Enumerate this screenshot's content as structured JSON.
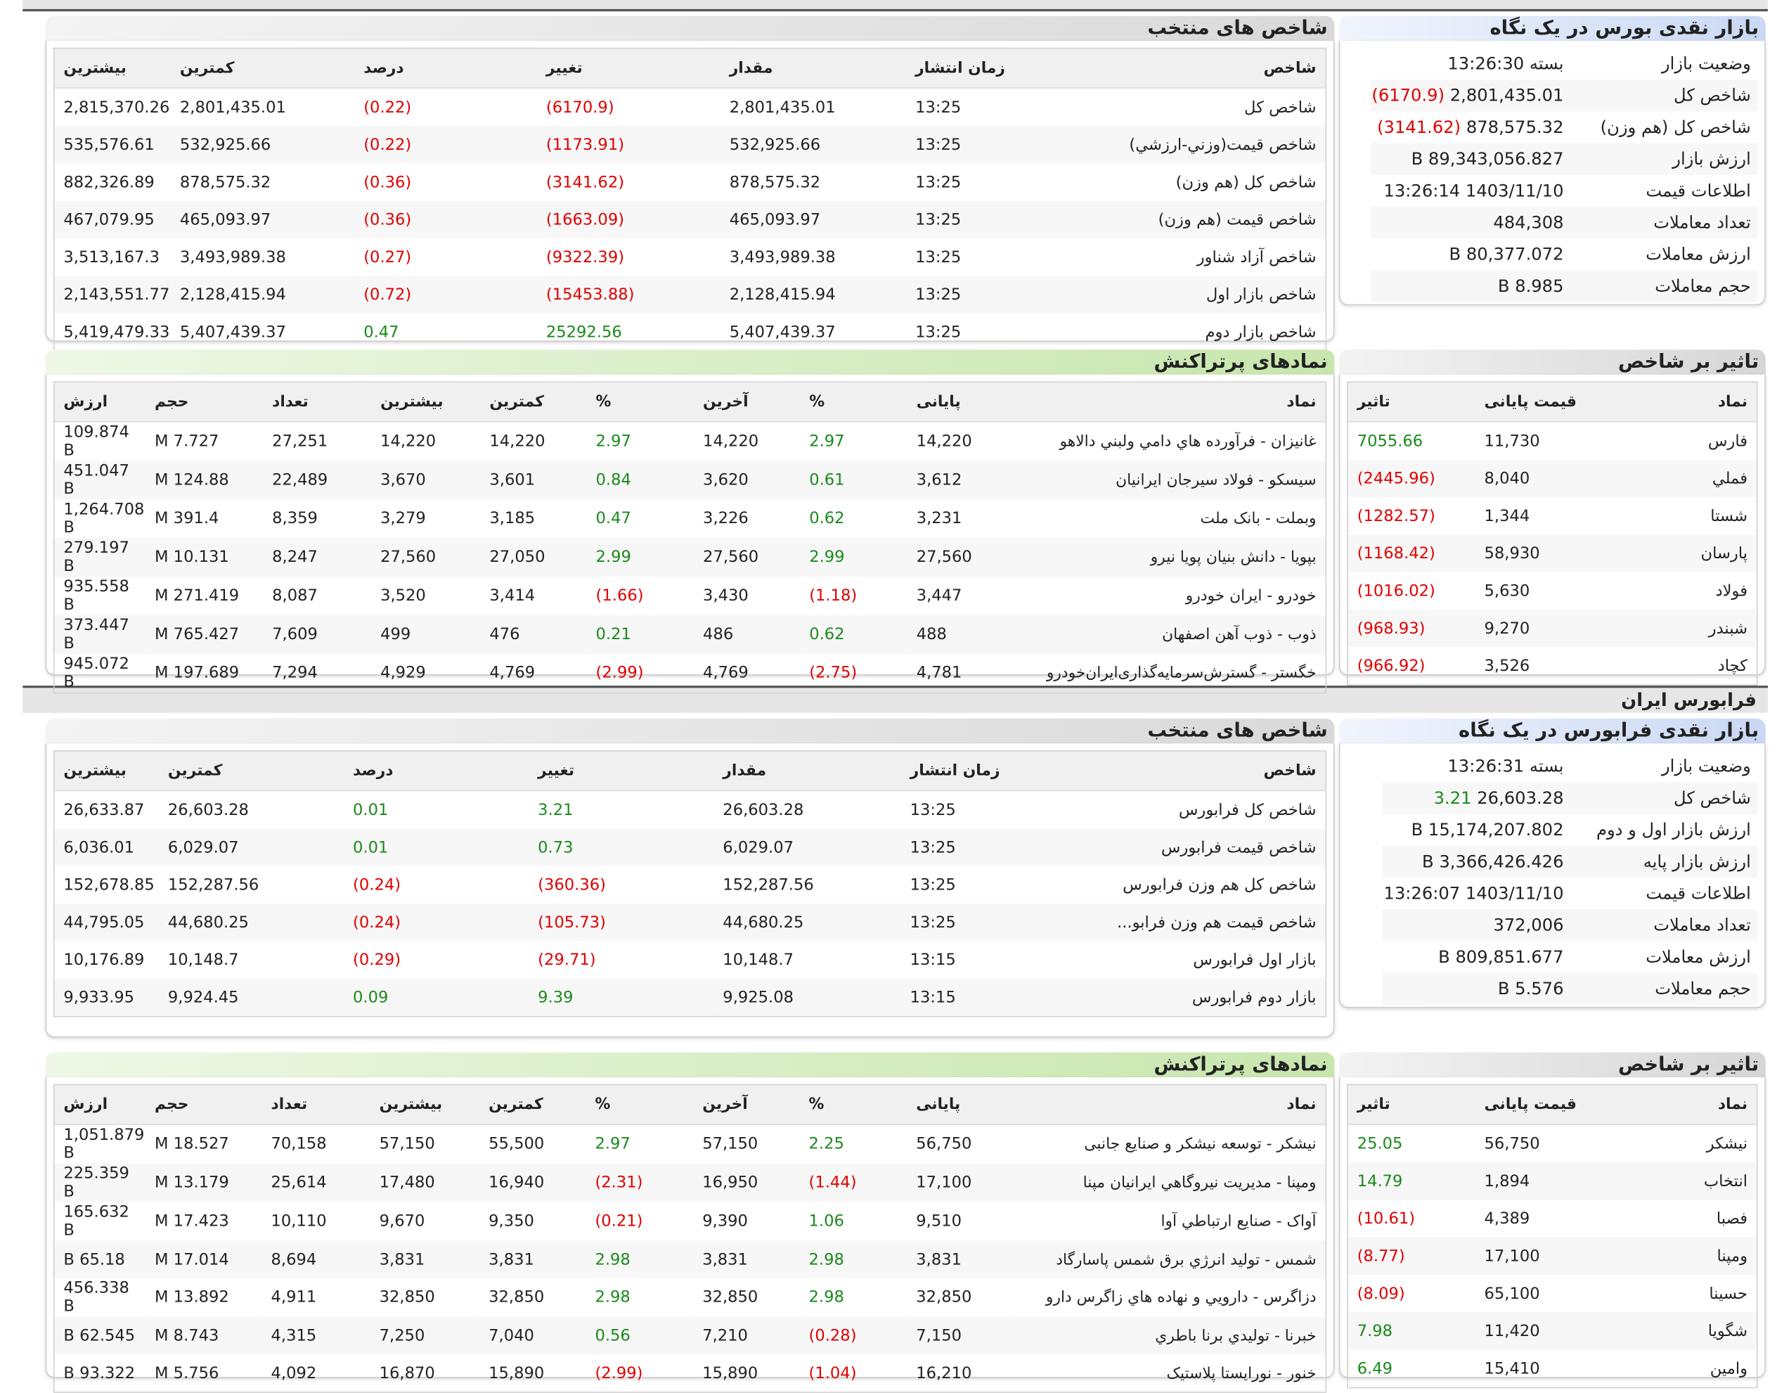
{
  "tehran": {
    "snapshot": {
      "title": "بازار نقدی بورس در یک نگاه",
      "rows": [
        {
          "k": "وضعیت بازار",
          "v": "بسته 13:26:30",
          "extra": "",
          "cls": ""
        },
        {
          "k": "شاخص کل",
          "v": "2,801,435.01",
          "extra": "(6170.9)",
          "cls": "neg"
        },
        {
          "k": "شاخص کل (هم وزن)",
          "v": "878,575.32",
          "extra": "(3141.62)",
          "cls": "neg"
        },
        {
          "k": "ارزش بازار",
          "v": "89,343,056.827 B",
          "extra": "",
          "cls": ""
        },
        {
          "k": "اطلاعات قیمت",
          "v": "1403/11/10 13:26:14",
          "extra": "",
          "cls": ""
        },
        {
          "k": "تعداد معاملات",
          "v": "484,308",
          "extra": "",
          "cls": ""
        },
        {
          "k": "ارزش معاملات",
          "v": "80,377.072 B",
          "extra": "",
          "cls": ""
        },
        {
          "k": "حجم معاملات",
          "v": "8.985 B",
          "extra": "",
          "cls": ""
        }
      ]
    },
    "indices": {
      "title": "شاخص های منتخب",
      "headers": [
        "شاخص",
        "زمان انتشار",
        "مقدار",
        "تغییر",
        "درصد",
        "کمترین",
        "بیشترین"
      ],
      "rows": [
        [
          "شاخص کل",
          "13:25",
          "2,801,435.01",
          "(6170.9)",
          "(0.22)",
          "2,801,435.01",
          "2,815,370.26"
        ],
        [
          "شاخص قیمت(وزني-ارزشي)",
          "13:25",
          "532,925.66",
          "(1173.91)",
          "(0.22)",
          "532,925.66",
          "535,576.61"
        ],
        [
          "شاخص کل (هم وزن)",
          "13:25",
          "878,575.32",
          "(3141.62)",
          "(0.36)",
          "878,575.32",
          "882,326.89"
        ],
        [
          "شاخص قیمت (هم وزن)",
          "13:25",
          "465,093.97",
          "(1663.09)",
          "(0.36)",
          "465,093.97",
          "467,079.95"
        ],
        [
          "شاخص آزاد شناور",
          "13:25",
          "3,493,989.38",
          "(9322.39)",
          "(0.27)",
          "3,493,989.38",
          "3,513,167.3"
        ],
        [
          "شاخص بازار اول",
          "13:25",
          "2,128,415.94",
          "(15453.88)",
          "(0.72)",
          "2,128,415.94",
          "2,143,551.77"
        ],
        [
          "شاخص بازار دوم",
          "13:25",
          "5,407,439.37",
          "25292.56",
          "0.47",
          "5,407,439.37",
          "5,419,479.33"
        ]
      ]
    },
    "impact": {
      "title": "تاثیر بر شاخص",
      "headers": [
        "نماد",
        "قیمت پایانی",
        "تاثیر"
      ],
      "rows": [
        [
          "فارس",
          "11,730",
          "7055.66"
        ],
        [
          "فملي",
          "8,040",
          "(2445.96)"
        ],
        [
          "شستا",
          "1,344",
          "(1282.57)"
        ],
        [
          "پارسان",
          "58,930",
          "(1168.42)"
        ],
        [
          "فولاد",
          "5,630",
          "(1016.02)"
        ],
        [
          "شبندر",
          "9,270",
          "(968.93)"
        ],
        [
          "کچاد",
          "3,526",
          "(966.92)"
        ]
      ]
    },
    "active": {
      "title": "نمادهای پرتراکنش",
      "headers": [
        "نماد",
        "پایانی",
        "%",
        "آخرین",
        "%",
        "کمترین",
        "بیشترین",
        "تعداد",
        "حجم",
        "ارزش"
      ],
      "rows": [
        [
          "غانیزان - فرآورده هاي دامي ولبني دالاهو",
          "14,220",
          "2.97",
          "14,220",
          "2.97",
          "14,220",
          "14,220",
          "27,251",
          "7.727 M",
          "109.874 B"
        ],
        [
          "سیسکو - فولاد سیرجان ایرانیان",
          "3,612",
          "0.61",
          "3,620",
          "0.84",
          "3,601",
          "3,670",
          "22,489",
          "124.88 M",
          "451.047 B"
        ],
        [
          "وبملت - بانک ملت",
          "3,231",
          "0.62",
          "3,226",
          "0.47",
          "3,185",
          "3,279",
          "8,359",
          "391.4 M",
          "1,264.708 B"
        ],
        [
          "بپویا - دانش بنیان پویا نیرو",
          "27,560",
          "2.99",
          "27,560",
          "2.99",
          "27,050",
          "27,560",
          "8,247",
          "10.131 M",
          "279.197 B"
        ],
        [
          "خودرو - ایران خودرو",
          "3,447",
          "(1.18)",
          "3,430",
          "(1.66)",
          "3,414",
          "3,520",
          "8,087",
          "271.419 M",
          "935.558 B"
        ],
        [
          "ذوب - ذوب آهن اصفهان",
          "488",
          "0.62",
          "486",
          "0.21",
          "476",
          "499",
          "7,609",
          "765.427 M",
          "373.447 B"
        ],
        [
          "خگستر - گسترش‌سرمایه‌گذاری‌ایران‌خودرو",
          "4,781",
          "(2.75)",
          "4,769",
          "(2.99)",
          "4,769",
          "4,929",
          "7,294",
          "197.689 M",
          "945.072 B"
        ]
      ]
    }
  },
  "farabourse": {
    "section_title": "فرابورس ایران",
    "snapshot": {
      "title": "بازار نقدی فرابورس در یک نگاه",
      "rows": [
        {
          "k": "وضعیت بازار",
          "v": "بسته 13:26:31",
          "extra": "",
          "cls": ""
        },
        {
          "k": "شاخص کل",
          "v": "26,603.28",
          "extra": "3.21",
          "cls": "pos"
        },
        {
          "k": "ارزش بازار اول و دوم",
          "v": "15,174,207.802 B",
          "extra": "",
          "cls": ""
        },
        {
          "k": "ارزش بازار پایه",
          "v": "3,366,426.426 B",
          "extra": "",
          "cls": ""
        },
        {
          "k": "اطلاعات قیمت",
          "v": "1403/11/10 13:26:07",
          "extra": "",
          "cls": ""
        },
        {
          "k": "تعداد معاملات",
          "v": "372,006",
          "extra": "",
          "cls": ""
        },
        {
          "k": "ارزش معاملات",
          "v": "809,851.677 B",
          "extra": "",
          "cls": ""
        },
        {
          "k": "حجم معاملات",
          "v": "5.576 B",
          "extra": "",
          "cls": ""
        }
      ]
    },
    "indices": {
      "title": "شاخص های منتخب",
      "headers": [
        "شاخص",
        "زمان انتشار",
        "مقدار",
        "تغییر",
        "درصد",
        "کمترین",
        "بیشترین"
      ],
      "rows": [
        [
          "شاخص کل فرابورس",
          "13:25",
          "26,603.28",
          "3.21",
          "0.01",
          "26,603.28",
          "26,633.87"
        ],
        [
          "شاخص قیمت فرابورس",
          "13:25",
          "6,029.07",
          "0.73",
          "0.01",
          "6,029.07",
          "6,036.01"
        ],
        [
          "شاخص کل هم وزن فرابورس",
          "13:25",
          "152,287.56",
          "(360.36)",
          "(0.24)",
          "152,287.56",
          "152,678.85"
        ],
        [
          "شاخص قیمت هم وزن فرابو...",
          "13:25",
          "44,680.25",
          "(105.73)",
          "(0.24)",
          "44,680.25",
          "44,795.05"
        ],
        [
          "بازار اول فرابورس",
          "13:15",
          "10,148.7",
          "(29.71)",
          "(0.29)",
          "10,148.7",
          "10,176.89"
        ],
        [
          "بازار دوم فرابورس",
          "13:15",
          "9,925.08",
          "9.39",
          "0.09",
          "9,924.45",
          "9,933.95"
        ]
      ]
    },
    "impact": {
      "title": "تاثیر بر شاخص",
      "headers": [
        "نماد",
        "قیمت پایانی",
        "تاثیر"
      ],
      "rows": [
        [
          "نیشکر",
          "56,750",
          "25.05"
        ],
        [
          "انتخاب",
          "1,894",
          "14.79"
        ],
        [
          "فصبا",
          "4,389",
          "(10.61)"
        ],
        [
          "ومپنا",
          "17,100",
          "(8.77)"
        ],
        [
          "حسینا",
          "65,100",
          "(8.09)"
        ],
        [
          "شگویا",
          "11,420",
          "7.98"
        ],
        [
          "وامین",
          "15,410",
          "6.49"
        ]
      ]
    },
    "active": {
      "title": "نمادهای پرتراکنش",
      "headers": [
        "نماد",
        "پایانی",
        "%",
        "آخرین",
        "%",
        "کمترین",
        "بیشترین",
        "تعداد",
        "حجم",
        "ارزش"
      ],
      "rows": [
        [
          "نیشکر - توسعه نیشکر و صنایع جانبی",
          "56,750",
          "2.25",
          "57,150",
          "2.97",
          "55,500",
          "57,150",
          "70,158",
          "18.527 M",
          "1,051.879 B"
        ],
        [
          "ومپنا - مدیریت نیروگاهي ایرانیان مپنا",
          "17,100",
          "(1.44)",
          "16,950",
          "(2.31)",
          "16,940",
          "17,480",
          "25,614",
          "13.179 M",
          "225.359 B"
        ],
        [
          "آواک - صنایع ارتباطي آوا",
          "9,510",
          "1.06",
          "9,390",
          "(0.21)",
          "9,350",
          "9,670",
          "10,110",
          "17.423 M",
          "165.632 B"
        ],
        [
          "شمس - تولید انرژي برق شمس پاسارگاد",
          "3,831",
          "2.98",
          "3,831",
          "2.98",
          "3,831",
          "3,831",
          "8,694",
          "17.014 M",
          "65.18 B"
        ],
        [
          "دزاگرس - دارويي و نهاده هاي زاگرس دارو",
          "32,850",
          "2.98",
          "32,850",
          "2.98",
          "32,850",
          "32,850",
          "4,911",
          "13.892 M",
          "456.338 B"
        ],
        [
          "خبرنا - توليدي برنا باطري",
          "7,150",
          "(0.28)",
          "7,210",
          "0.56",
          "7,040",
          "7,250",
          "4,315",
          "8.743 M",
          "62.545 B"
        ],
        [
          "خنور - نورایستا پلاستیک",
          "16,210",
          "(1.04)",
          "15,890",
          "(2.99)",
          "15,890",
          "16,870",
          "4,092",
          "5.756 M",
          "93.322 B"
        ]
      ]
    }
  }
}
